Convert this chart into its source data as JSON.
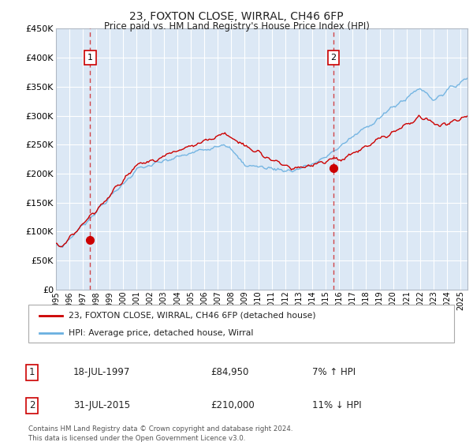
{
  "title": "23, FOXTON CLOSE, WIRRAL, CH46 6FP",
  "subtitle": "Price paid vs. HM Land Registry's House Price Index (HPI)",
  "plot_bg_color": "#dce8f5",
  "grid_color": "#ffffff",
  "sale1": {
    "price": 84950,
    "marker_x": 1997.54,
    "label": "1"
  },
  "sale2": {
    "price": 210000,
    "marker_x": 2015.58,
    "label": "2"
  },
  "legend_label_red": "23, FOXTON CLOSE, WIRRAL, CH46 6FP (detached house)",
  "legend_label_blue": "HPI: Average price, detached house, Wirral",
  "footnote": "Contains HM Land Registry data © Crown copyright and database right 2024.\nThis data is licensed under the Open Government Licence v3.0.",
  "table_rows": [
    {
      "num": "1",
      "date": "18-JUL-1997",
      "price": "£84,950",
      "hpi": "7% ↑ HPI"
    },
    {
      "num": "2",
      "date": "31-JUL-2015",
      "price": "£210,000",
      "hpi": "11% ↓ HPI"
    }
  ],
  "xmin": 1995.0,
  "xmax": 2025.5,
  "ymin": 0,
  "ymax": 450000
}
